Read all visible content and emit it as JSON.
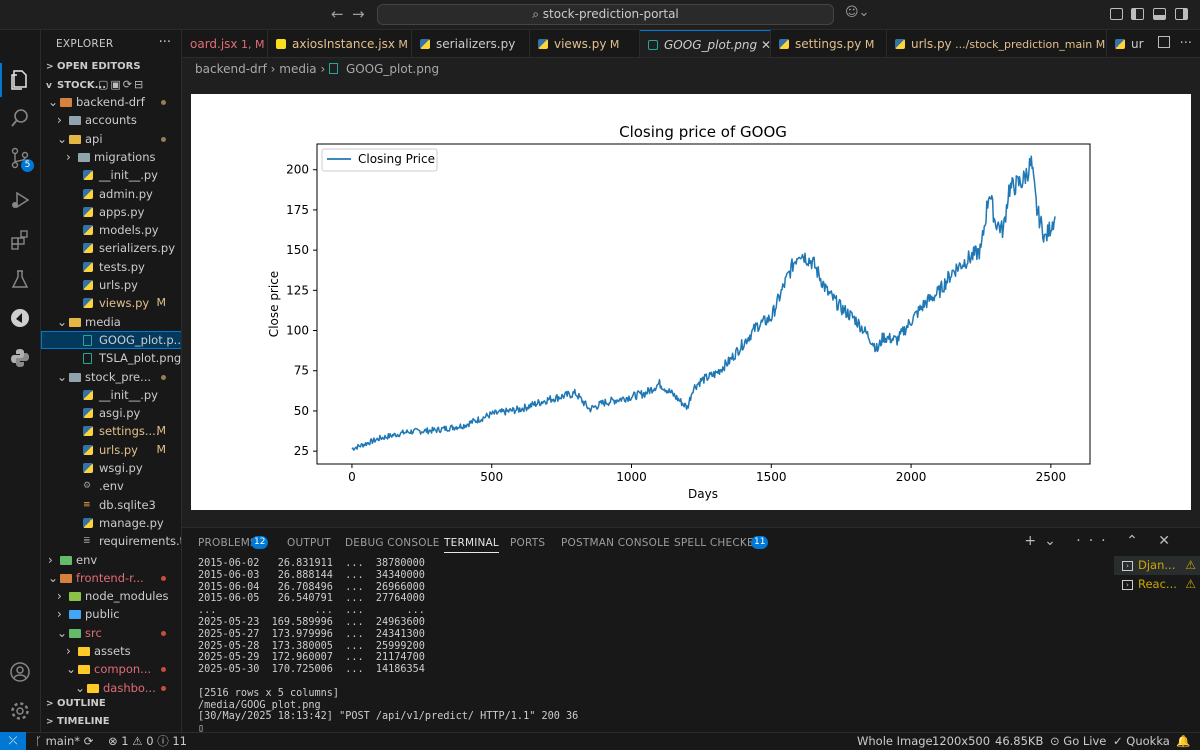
{
  "titlebar": {
    "search": "stock-prediction-portal",
    "search_icon": "search-icon",
    "back_icon": "arrow-left-icon",
    "forward_icon": "arrow-right-icon",
    "copilot_icon": "copilot-icon"
  },
  "activity": {
    "scm_badge": "5",
    "items": [
      "explorer-icon",
      "search-icon",
      "source-control-icon",
      "run-debug-icon",
      "extensions-icon",
      "testing-icon",
      "quokka-icon",
      "python-icon",
      "account-icon",
      "settings-gear-icon"
    ]
  },
  "sidebar": {
    "title": "EXPLORER",
    "more": "···",
    "open_editors": "OPEN EDITORS",
    "workspace": "STOCK...",
    "outline": "OUTLINE",
    "timeline": "TIMELINE",
    "tree": [
      {
        "label": "backend-drf",
        "indent": 1,
        "kind": "folder-open",
        "color": "#d7813f",
        "chev": "v",
        "status": "dot"
      },
      {
        "label": "accounts",
        "indent": 2,
        "kind": "folder",
        "color": "#90a4ae",
        "chev": ">",
        "status": ""
      },
      {
        "label": "api",
        "indent": 2,
        "kind": "folder-open",
        "color": "#e4b645",
        "chev": "v",
        "status": "dot"
      },
      {
        "label": "migrations",
        "indent": 3,
        "kind": "folder",
        "color": "#90a4ae",
        "chev": ">",
        "status": ""
      },
      {
        "label": "__init__.py",
        "indent": 4,
        "kind": "py",
        "status": ""
      },
      {
        "label": "admin.py",
        "indent": 4,
        "kind": "py",
        "status": ""
      },
      {
        "label": "apps.py",
        "indent": 4,
        "kind": "py",
        "status": ""
      },
      {
        "label": "models.py",
        "indent": 4,
        "kind": "py",
        "status": ""
      },
      {
        "label": "serializers.py",
        "indent": 4,
        "kind": "py",
        "status": ""
      },
      {
        "label": "tests.py",
        "indent": 4,
        "kind": "py",
        "status": ""
      },
      {
        "label": "urls.py",
        "indent": 4,
        "kind": "py",
        "status": ""
      },
      {
        "label": "views.py",
        "indent": 4,
        "kind": "py",
        "status": "M",
        "modified": true
      },
      {
        "label": "media",
        "indent": 2,
        "kind": "folder-open",
        "color": "#e4b645",
        "chev": "v",
        "status": ""
      },
      {
        "label": "GOOG_plot.p...",
        "indent": 4,
        "kind": "img",
        "status": "",
        "selected": true
      },
      {
        "label": "TSLA_plot.png",
        "indent": 4,
        "kind": "img",
        "status": ""
      },
      {
        "label": "stock_pre...",
        "indent": 2,
        "kind": "folder-open",
        "color": "#90a4ae",
        "chev": "v",
        "status": "dot"
      },
      {
        "label": "__init__.py",
        "indent": 4,
        "kind": "py",
        "status": ""
      },
      {
        "label": "asgi.py",
        "indent": 4,
        "kind": "py",
        "status": ""
      },
      {
        "label": "settings....",
        "indent": 4,
        "kind": "py",
        "status": "M",
        "modified": true
      },
      {
        "label": "urls.py",
        "indent": 4,
        "kind": "py",
        "status": "M",
        "modified": true
      },
      {
        "label": "wsgi.py",
        "indent": 4,
        "kind": "py",
        "status": ""
      },
      {
        "label": ".env",
        "indent": 4,
        "kind": "gear",
        "status": ""
      },
      {
        "label": "db.sqlite3",
        "indent": 4,
        "kind": "db",
        "status": ""
      },
      {
        "label": "manage.py",
        "indent": 4,
        "kind": "py",
        "status": ""
      },
      {
        "label": "requirements.txt",
        "indent": 4,
        "kind": "txt",
        "status": ""
      },
      {
        "label": "env",
        "indent": 1,
        "kind": "folder",
        "color": "#66bb6a",
        "chev": ">",
        "status": ""
      },
      {
        "label": "frontend-r...",
        "indent": 1,
        "kind": "folder-open",
        "color": "#d7813f",
        "chev": "v",
        "status": "dot",
        "red": true
      },
      {
        "label": "node_modules",
        "indent": 2,
        "kind": "folder",
        "color": "#8bc34a",
        "chev": ">",
        "status": ""
      },
      {
        "label": "public",
        "indent": 2,
        "kind": "folder",
        "color": "#42a5f5",
        "chev": ">",
        "status": ""
      },
      {
        "label": "src",
        "indent": 2,
        "kind": "folder-open",
        "color": "#66bb6a",
        "chev": "v",
        "status": "dot",
        "red": true
      },
      {
        "label": "assets",
        "indent": 3,
        "kind": "folder",
        "color": "#ffca28",
        "chev": ">",
        "status": ""
      },
      {
        "label": "compon...",
        "indent": 3,
        "kind": "folder-open",
        "color": "#ffca28",
        "chev": "v",
        "status": "dot",
        "red": true
      },
      {
        "label": "dashbo...",
        "indent": 4,
        "kind": "folder-open",
        "color": "#ffca28",
        "chev": "v",
        "status": "dot",
        "red": true
      }
    ]
  },
  "tabs": [
    {
      "label": "oard.jsx",
      "suffix": "1, M",
      "color": "#e06c75",
      "icon": "#61dafb"
    },
    {
      "label": "axiosInstance.jsx",
      "suffix": "M",
      "color": "#e2c08d",
      "icon": "#f7df1e"
    },
    {
      "label": "serializers.py",
      "suffix": "",
      "color": "#cccccc",
      "icon": "py"
    },
    {
      "label": "views.py",
      "suffix": "M",
      "color": "#e2c08d",
      "icon": "py"
    },
    {
      "label": "GOOG_plot.png",
      "suffix": "",
      "color": "#cccccc",
      "icon": "img",
      "active": true
    },
    {
      "label": "settings.py",
      "suffix": "M",
      "color": "#e2c08d",
      "icon": "py"
    },
    {
      "label": "urls.py",
      "suffix": ".../stock_prediction_main M",
      "color": "#e2c08d",
      "icon": "py"
    },
    {
      "label": "ur",
      "suffix": "",
      "color": "#cccccc",
      "icon": "py"
    }
  ],
  "breadcrumb": [
    "backend-drf",
    "media",
    "GOOG_plot.png"
  ],
  "chart_data": {
    "type": "line",
    "title": "Closing price of GOOG",
    "xlabel": "Days",
    "ylabel": "Close price",
    "xlim": [
      -125,
      2640
    ],
    "ylim": [
      17,
      216
    ],
    "xticks": [
      0,
      500,
      1000,
      1500,
      2000,
      2500
    ],
    "yticks": [
      25,
      50,
      75,
      100,
      125,
      150,
      175,
      200
    ],
    "legend": "upper-left",
    "color": "#1f77b4",
    "series": [
      {
        "name": "Closing Price",
        "x": [
          0,
          40,
          100,
          200,
          300,
          400,
          500,
          600,
          700,
          800,
          850,
          900,
          1000,
          1050,
          1100,
          1150,
          1200,
          1220,
          1250,
          1300,
          1350,
          1400,
          1450,
          1500,
          1550,
          1580,
          1600,
          1650,
          1700,
          1750,
          1800,
          1850,
          1880,
          1900,
          1950,
          2000,
          2050,
          2100,
          2150,
          2200,
          2250,
          2280,
          2300,
          2330,
          2350,
          2400,
          2430,
          2450,
          2480,
          2500,
          2515
        ],
        "y": [
          26.5,
          29,
          33,
          37,
          38,
          41,
          48,
          51,
          57,
          61,
          51,
          55,
          59,
          61,
          67,
          60,
          52,
          64,
          69,
          73,
          81,
          92,
          103,
          108,
          130,
          142,
          149,
          142,
          124,
          114,
          107,
          96,
          88,
          96,
          94,
          106,
          117,
          124,
          137,
          144,
          150,
          187,
          168,
          162,
          188,
          193,
          204,
          175,
          157,
          165,
          171
        ]
      }
    ]
  },
  "panel": {
    "tabs": [
      "PROBLEMS",
      "OUTPUT",
      "DEBUG CONSOLE",
      "TERMINAL",
      "PORTS",
      "POSTMAN CONSOLE",
      "SPELL CHECKER"
    ],
    "problems_badge": "12",
    "spell_badge": "11",
    "terminal_lines": [
      "2015-06-02   26.831911  ...  38780000",
      "2015-06-03   26.888144  ...  34340000",
      "2015-06-04   26.708496  ...  26966000",
      "2015-06-05   26.540791  ...  27764000",
      "...                ...  ...       ...",
      "2025-05-23  169.589996  ...  24963600",
      "2025-05-27  173.979996  ...  24341300",
      "2025-05-28  173.380005  ...  25999200",
      "2025-05-29  172.960007  ...  21174700",
      "2025-05-30  170.725006  ...  14186354",
      "",
      "[2516 rows x 5 columns]",
      "/media/GOOG_plot.png",
      "[30/May/2025 18:13:42] \"POST /api/v1/predict/ HTTP/1.1\" 200 36",
      "▯"
    ],
    "terminals": [
      {
        "label": "Djan...",
        "warn": "⚠"
      },
      {
        "label": "Reac...",
        "warn": "⚠"
      }
    ]
  },
  "status": {
    "branch": "main*",
    "problems": "⊗ 1 ⚠ 0 ⓘ 11",
    "viewer": "Whole Image",
    "dims": "1200x500",
    "size": "46.85KB",
    "golive": "Go Live",
    "quokka": "Quokka"
  }
}
